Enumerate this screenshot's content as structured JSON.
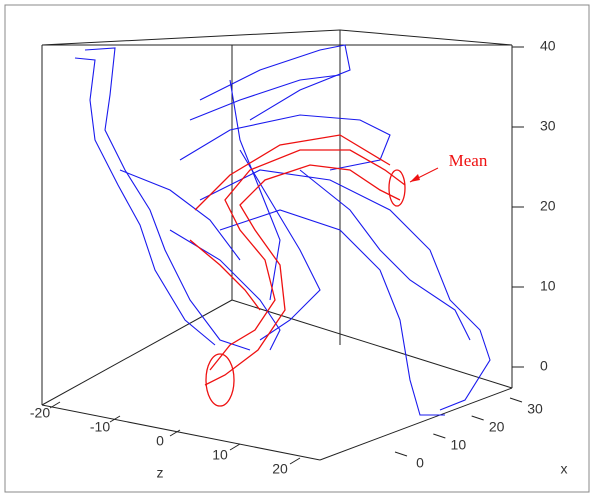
{
  "axes": {
    "y": {
      "ticks": [
        0,
        10,
        20,
        30,
        40
      ]
    },
    "z": {
      "label": "z",
      "ticks": [
        -20,
        -10,
        0,
        10,
        20
      ]
    },
    "x": {
      "label": "x",
      "ticks": [
        0,
        10,
        20,
        30
      ]
    }
  },
  "annotation": "Mean"
}
